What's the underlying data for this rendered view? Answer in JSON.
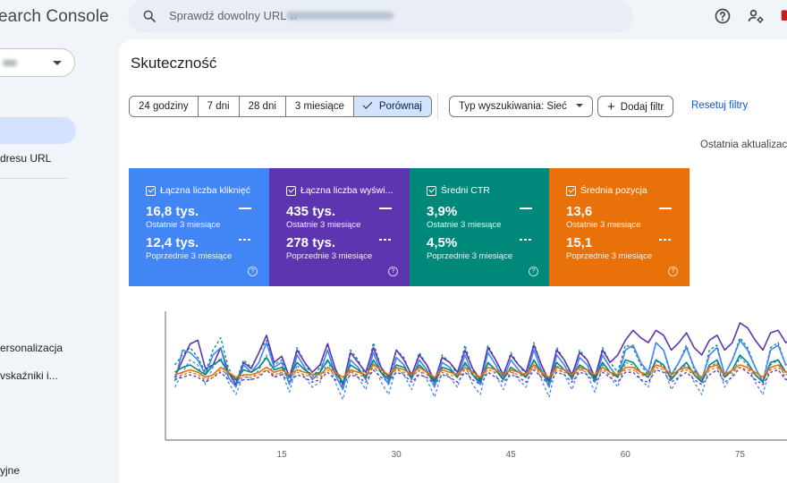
{
  "app": {
    "title": "earch Console"
  },
  "search": {
    "placeholder": "Sprawdź dowolny URL w"
  },
  "sidebar": {
    "items": [
      {
        "label": "dresu URL"
      },
      {
        "label": "ersonalizacja"
      },
      {
        "label": "vskaźniki i..."
      },
      {
        "label": "yjne"
      }
    ]
  },
  "page": {
    "title": "Skuteczność"
  },
  "date_range": {
    "options": [
      "24 godziny",
      "7 dni",
      "28 dni",
      "3 miesiące",
      "Porównaj"
    ],
    "selected": "Porównaj"
  },
  "filters": {
    "search_type": "Typ wyszukiwania: Sieć",
    "add_filter": "Dodaj filtr",
    "reset": "Resetuj filtry",
    "last_update": "Ostatnia aktualizac"
  },
  "metrics": [
    {
      "label": "Łączna liczba kliknięć",
      "current": "16,8 tys.",
      "current_period": "Ostatnie 3 miesiące",
      "previous": "12,4 tys.",
      "previous_period": "Poprzednie 3 miesiące",
      "color": "#4285f4"
    },
    {
      "label": "Łączna liczba wyświ...",
      "current": "435 tys.",
      "current_period": "Ostatnie 3 miesiące",
      "previous": "278 tys.",
      "previous_period": "Poprzednie 3 miesiące",
      "color": "#5e35b1"
    },
    {
      "label": "Średni CTR",
      "current": "3,9%",
      "current_period": "Ostatnie 3 miesiące",
      "previous": "4,5%",
      "previous_period": "Poprzednie 3 miesiące",
      "color": "#00897b"
    },
    {
      "label": "Średnia pozycja",
      "current": "13,6",
      "current_period": "Ostatnie 3 miesiące",
      "previous": "15,1",
      "previous_period": "Poprzednie 3 miesiące",
      "color": "#e8710a"
    }
  ],
  "chart_data": {
    "type": "line",
    "x_ticks": [
      15,
      30,
      45,
      60,
      75
    ],
    "x": [
      1,
      2,
      3,
      4,
      5,
      6,
      7,
      8,
      9,
      10,
      11,
      12,
      13,
      14,
      15,
      16,
      17,
      18,
      19,
      20,
      21,
      22,
      23,
      24,
      25,
      26,
      27,
      28,
      29,
      30,
      31,
      32,
      33,
      34,
      35,
      36,
      37,
      38,
      39,
      40,
      41,
      42,
      43,
      44,
      45,
      46,
      47,
      48,
      49,
      50,
      51,
      52,
      53,
      54,
      55,
      56,
      57,
      58,
      59,
      60,
      61,
      62,
      63,
      64,
      65,
      66,
      67,
      68,
      69,
      70,
      71,
      72,
      73,
      74,
      75,
      76,
      77,
      78,
      79,
      80,
      81,
      82,
      83,
      84
    ],
    "series": [
      {
        "color": "#5e35b1",
        "dashed": false,
        "values": [
          0.48,
          0.62,
          0.75,
          0.78,
          0.55,
          0.58,
          0.72,
          0.52,
          0.42,
          0.6,
          0.55,
          0.68,
          0.82,
          0.6,
          0.65,
          0.48,
          0.7,
          0.6,
          0.52,
          0.58,
          0.75,
          0.55,
          0.42,
          0.68,
          0.6,
          0.52,
          0.72,
          0.56,
          0.48,
          0.7,
          0.62,
          0.5,
          0.66,
          0.58,
          0.45,
          0.64,
          0.6,
          0.52,
          0.7,
          0.55,
          0.46,
          0.72,
          0.62,
          0.5,
          0.66,
          0.58,
          0.52,
          0.74,
          0.58,
          0.45,
          0.7,
          0.62,
          0.5,
          0.68,
          0.62,
          0.48,
          0.7,
          0.6,
          0.66,
          0.78,
          0.86,
          0.8,
          0.76,
          0.86,
          0.82,
          0.7,
          0.76,
          0.84,
          0.72,
          0.66,
          0.78,
          0.82,
          0.7,
          0.76,
          0.92,
          0.88,
          0.78,
          0.7,
          0.84,
          0.86,
          0.76,
          0.8,
          0.9,
          0.84
        ]
      },
      {
        "color": "#4285f4",
        "dashed": false,
        "values": [
          0.45,
          0.7,
          0.68,
          0.62,
          0.5,
          0.66,
          0.72,
          0.48,
          0.4,
          0.58,
          0.52,
          0.6,
          0.76,
          0.56,
          0.6,
          0.42,
          0.66,
          0.56,
          0.46,
          0.52,
          0.7,
          0.5,
          0.38,
          0.62,
          0.56,
          0.46,
          0.68,
          0.52,
          0.42,
          0.64,
          0.58,
          0.46,
          0.62,
          0.54,
          0.4,
          0.6,
          0.56,
          0.48,
          0.66,
          0.5,
          0.42,
          0.68,
          0.58,
          0.46,
          0.62,
          0.54,
          0.48,
          0.7,
          0.54,
          0.4,
          0.66,
          0.58,
          0.46,
          0.64,
          0.58,
          0.44,
          0.66,
          0.56,
          0.48,
          0.7,
          0.74,
          0.6,
          0.52,
          0.76,
          0.7,
          0.5,
          0.6,
          0.72,
          0.56,
          0.46,
          0.66,
          0.72,
          0.5,
          0.62,
          0.78,
          0.7,
          0.56,
          0.44,
          0.7,
          0.74,
          0.58,
          0.6,
          0.76,
          0.68
        ]
      },
      {
        "color": "#00897b",
        "dashed": false,
        "values": [
          0.52,
          0.56,
          0.58,
          0.54,
          0.5,
          0.58,
          0.62,
          0.52,
          0.46,
          0.54,
          0.52,
          0.56,
          0.64,
          0.54,
          0.56,
          0.48,
          0.6,
          0.54,
          0.5,
          0.52,
          0.62,
          0.52,
          0.44,
          0.58,
          0.54,
          0.48,
          0.62,
          0.52,
          0.46,
          0.58,
          0.56,
          0.48,
          0.58,
          0.52,
          0.44,
          0.56,
          0.54,
          0.48,
          0.6,
          0.5,
          0.44,
          0.6,
          0.54,
          0.46,
          0.56,
          0.52,
          0.48,
          0.62,
          0.52,
          0.44,
          0.6,
          0.54,
          0.48,
          0.58,
          0.54,
          0.46,
          0.6,
          0.52,
          0.48,
          0.62,
          0.6,
          0.52,
          0.48,
          0.62,
          0.58,
          0.46,
          0.54,
          0.6,
          0.5,
          0.44,
          0.58,
          0.62,
          0.48,
          0.54,
          0.66,
          0.6,
          0.5,
          0.44,
          0.6,
          0.62,
          0.52,
          0.54,
          0.64,
          0.58
        ]
      },
      {
        "color": "#e8710a",
        "dashed": false,
        "values": [
          0.5,
          0.52,
          0.54,
          0.52,
          0.48,
          0.5,
          0.56,
          0.52,
          0.48,
          0.5,
          0.5,
          0.52,
          0.56,
          0.52,
          0.54,
          0.5,
          0.54,
          0.52,
          0.5,
          0.5,
          0.56,
          0.52,
          0.48,
          0.54,
          0.52,
          0.5,
          0.58,
          0.54,
          0.5,
          0.56,
          0.54,
          0.5,
          0.56,
          0.52,
          0.48,
          0.54,
          0.52,
          0.5,
          0.56,
          0.52,
          0.48,
          0.56,
          0.54,
          0.5,
          0.54,
          0.52,
          0.5,
          0.58,
          0.52,
          0.48,
          0.56,
          0.54,
          0.5,
          0.56,
          0.54,
          0.5,
          0.56,
          0.52,
          0.5,
          0.56,
          0.56,
          0.52,
          0.5,
          0.58,
          0.56,
          0.5,
          0.54,
          0.56,
          0.52,
          0.48,
          0.56,
          0.58,
          0.5,
          0.54,
          0.58,
          0.56,
          0.52,
          0.48,
          0.56,
          0.58,
          0.52,
          0.54,
          0.58,
          0.56
        ]
      },
      {
        "color": "#4285f4",
        "dashed": true,
        "values": [
          0.4,
          0.52,
          0.62,
          0.58,
          0.42,
          0.56,
          0.64,
          0.44,
          0.34,
          0.5,
          0.46,
          0.54,
          0.66,
          0.48,
          0.52,
          0.36,
          0.58,
          0.48,
          0.4,
          0.44,
          0.62,
          0.44,
          0.3,
          0.54,
          0.48,
          0.38,
          0.6,
          0.44,
          0.34,
          0.56,
          0.5,
          0.38,
          0.54,
          0.46,
          0.32,
          0.52,
          0.48,
          0.4,
          0.58,
          0.42,
          0.34,
          0.6,
          0.5,
          0.38,
          0.54,
          0.46,
          0.4,
          0.62,
          0.46,
          0.32,
          0.58,
          0.5,
          0.38,
          0.56,
          0.5,
          0.36,
          0.58,
          0.48,
          0.4,
          0.6,
          0.58,
          0.46,
          0.4,
          0.62,
          0.56,
          0.38,
          0.48,
          0.6,
          0.44,
          0.34,
          0.56,
          0.6,
          0.4,
          0.5,
          0.64,
          0.58,
          0.44,
          0.34,
          0.58,
          0.62,
          0.46,
          0.48,
          0.64,
          0.56
        ]
      },
      {
        "color": "#5e35b1",
        "dashed": true,
        "values": [
          0.46,
          0.48,
          0.5,
          0.48,
          0.44,
          0.48,
          0.52,
          0.46,
          0.42,
          0.46,
          0.46,
          0.48,
          0.54,
          0.48,
          0.5,
          0.44,
          0.5,
          0.48,
          0.44,
          0.46,
          0.52,
          0.46,
          0.42,
          0.5,
          0.48,
          0.44,
          0.54,
          0.48,
          0.44,
          0.52,
          0.5,
          0.44,
          0.5,
          0.48,
          0.42,
          0.5,
          0.48,
          0.44,
          0.52,
          0.46,
          0.42,
          0.52,
          0.48,
          0.44,
          0.5,
          0.48,
          0.44,
          0.54,
          0.48,
          0.42,
          0.52,
          0.5,
          0.44,
          0.52,
          0.5,
          0.44,
          0.52,
          0.48,
          0.44,
          0.52,
          0.52,
          0.46,
          0.44,
          0.54,
          0.52,
          0.44,
          0.48,
          0.52,
          0.46,
          0.42,
          0.5,
          0.54,
          0.44,
          0.48,
          0.56,
          0.52,
          0.46,
          0.42,
          0.52,
          0.54,
          0.46,
          0.48,
          0.56,
          0.52
        ]
      },
      {
        "color": "#00897b",
        "dashed": true,
        "values": [
          0.58,
          0.66,
          0.72,
          0.64,
          0.52,
          0.7,
          0.8,
          0.56,
          0.44,
          0.62,
          0.56,
          0.68,
          0.78,
          0.58,
          0.62,
          0.44,
          0.72,
          0.6,
          0.48,
          0.56,
          0.76,
          0.54,
          0.4,
          0.7,
          0.62,
          0.48,
          0.76,
          0.56,
          0.44,
          0.7,
          0.64,
          0.48,
          0.68,
          0.58,
          0.42,
          0.66,
          0.6,
          0.5,
          0.74,
          0.54,
          0.44,
          0.74,
          0.62,
          0.48,
          0.68,
          0.58,
          0.5,
          0.76,
          0.58,
          0.42,
          0.72,
          0.62,
          0.48,
          0.7,
          0.62,
          0.46,
          0.72,
          0.6,
          0.52,
          0.74,
          0.72,
          0.58,
          0.5,
          0.76,
          0.7,
          0.48,
          0.6,
          0.74,
          0.54,
          0.44,
          0.7,
          0.74,
          0.5,
          0.62,
          0.8,
          0.72,
          0.56,
          0.44,
          0.72,
          0.76,
          0.58,
          0.6,
          0.8,
          0.7
        ]
      },
      {
        "color": "#e8710a",
        "dashed": true,
        "values": [
          0.48,
          0.5,
          0.52,
          0.5,
          0.46,
          0.48,
          0.54,
          0.5,
          0.46,
          0.48,
          0.48,
          0.5,
          0.54,
          0.5,
          0.52,
          0.48,
          0.52,
          0.5,
          0.48,
          0.48,
          0.54,
          0.5,
          0.46,
          0.52,
          0.5,
          0.48,
          0.56,
          0.52,
          0.48,
          0.54,
          0.52,
          0.48,
          0.54,
          0.5,
          0.46,
          0.52,
          0.5,
          0.48,
          0.54,
          0.5,
          0.46,
          0.54,
          0.52,
          0.48,
          0.52,
          0.5,
          0.48,
          0.56,
          0.5,
          0.46,
          0.54,
          0.52,
          0.48,
          0.54,
          0.52,
          0.48,
          0.54,
          0.5,
          0.48,
          0.54,
          0.54,
          0.5,
          0.48,
          0.56,
          0.54,
          0.48,
          0.52,
          0.54,
          0.5,
          0.46,
          0.54,
          0.56,
          0.48,
          0.52,
          0.56,
          0.54,
          0.5,
          0.46,
          0.54,
          0.56,
          0.5,
          0.52,
          0.56,
          0.54
        ]
      }
    ]
  }
}
